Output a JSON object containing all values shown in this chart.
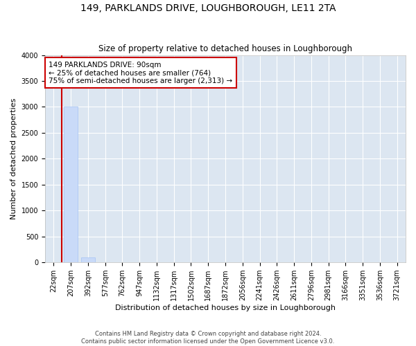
{
  "title": "149, PARKLANDS DRIVE, LOUGHBOROUGH, LE11 2TA",
  "subtitle": "Size of property relative to detached houses in Loughborough",
  "xlabel": "Distribution of detached houses by size in Loughborough",
  "ylabel": "Number of detached properties",
  "categories": [
    "22sqm",
    "207sqm",
    "392sqm",
    "577sqm",
    "762sqm",
    "947sqm",
    "1132sqm",
    "1317sqm",
    "1502sqm",
    "1687sqm",
    "1872sqm",
    "2056sqm",
    "2241sqm",
    "2426sqm",
    "2611sqm",
    "2796sqm",
    "2981sqm",
    "3166sqm",
    "3351sqm",
    "3536sqm",
    "3721sqm"
  ],
  "bar_heights": [
    0,
    3000,
    100,
    0,
    0,
    0,
    0,
    0,
    0,
    0,
    0,
    0,
    0,
    0,
    0,
    0,
    0,
    0,
    0,
    0,
    0
  ],
  "bar_color": "#c9daf8",
  "bar_edge_color": "#a4c2f4",
  "ylim": [
    0,
    4000
  ],
  "yticks": [
    0,
    500,
    1000,
    1500,
    2000,
    2500,
    3000,
    3500,
    4000
  ],
  "vline_color": "#cc0000",
  "vline_x": 0.47,
  "annotation_line1": "149 PARKLANDS DRIVE: 90sqm",
  "annotation_line2": "← 25% of detached houses are smaller (764)",
  "annotation_line3": "75% of semi-detached houses are larger (2,313) →",
  "annotation_box_color": "#ffffff",
  "annotation_box_edge_color": "#cc0000",
  "annotation_fontsize": 7.5,
  "title_fontsize": 10,
  "subtitle_fontsize": 8.5,
  "xlabel_fontsize": 8,
  "ylabel_fontsize": 8,
  "tick_fontsize": 7,
  "footer_line1": "Contains HM Land Registry data © Crown copyright and database right 2024.",
  "footer_line2": "Contains public sector information licensed under the Open Government Licence v3.0.",
  "plot_bg_color": "#dce6f1",
  "grid_color": "#ffffff"
}
